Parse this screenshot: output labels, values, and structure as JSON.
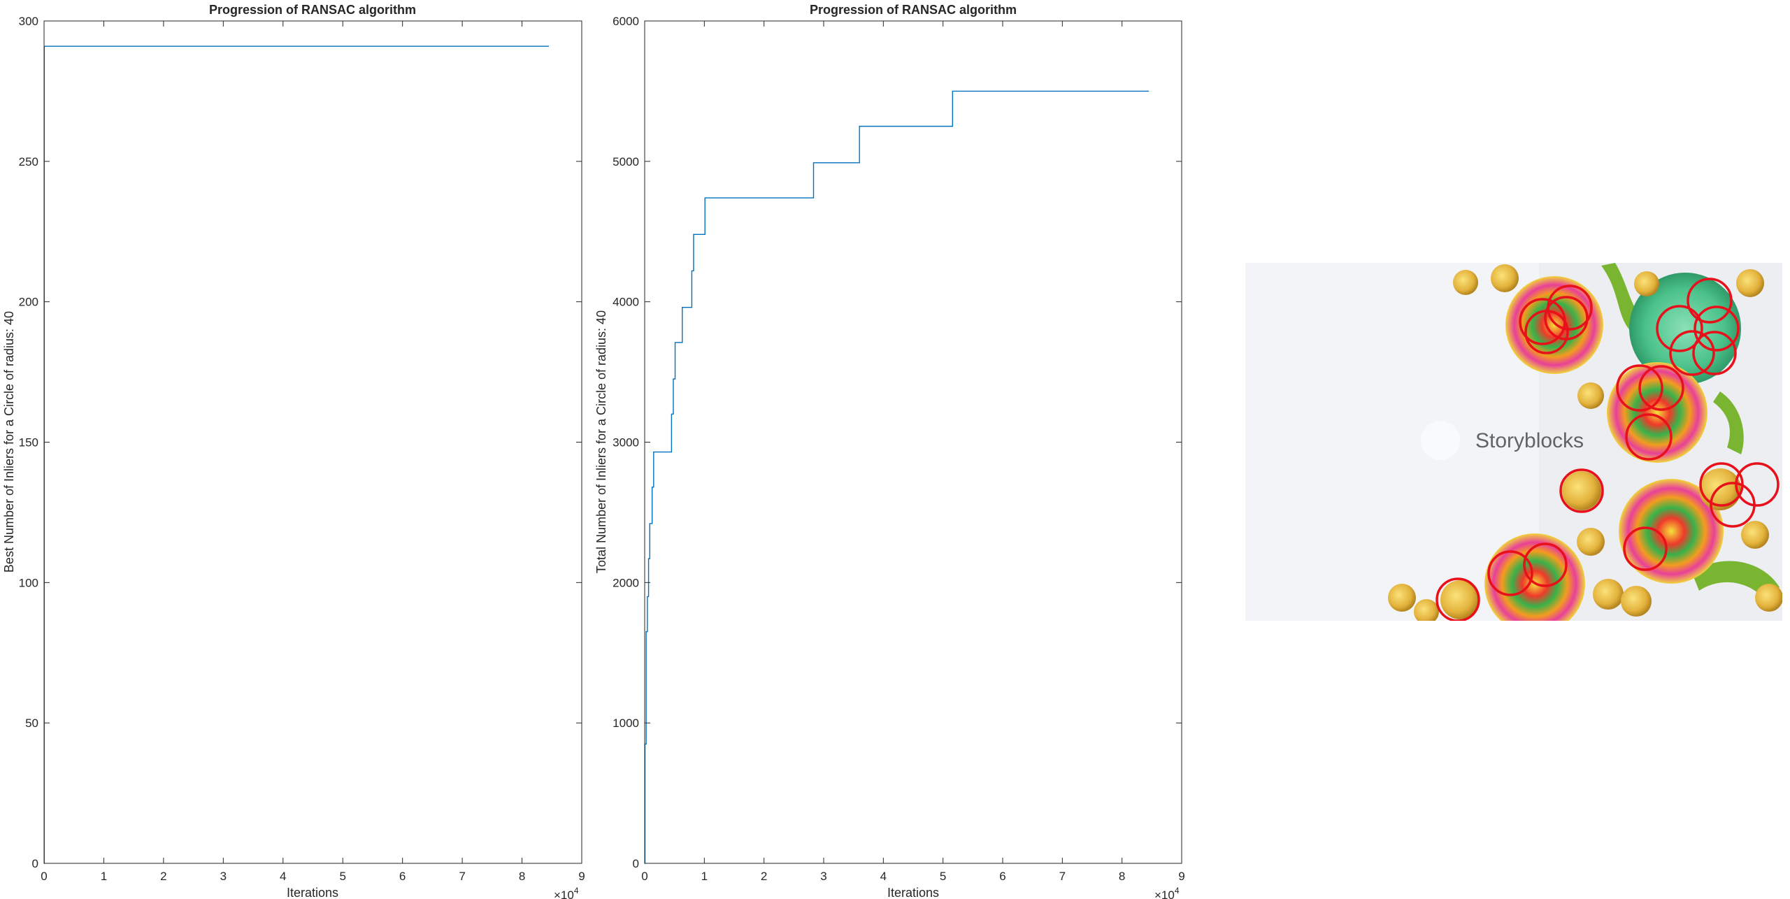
{
  "chart_data": [
    {
      "type": "line",
      "title": "Progression of RANSAC algorithm",
      "xlabel": "Iterations",
      "ylabel": "Best Number of Inliers for a Circle of radius: 40",
      "xlim": [
        0,
        90000
      ],
      "ylim": [
        0,
        300
      ],
      "x_exponent_label": "×10",
      "x_exponent": "4",
      "xticks": [
        0,
        10000,
        20000,
        30000,
        40000,
        50000,
        60000,
        70000,
        80000,
        90000
      ],
      "xtick_labels": [
        "0",
        "1",
        "2",
        "3",
        "4",
        "5",
        "6",
        "7",
        "8",
        "9"
      ],
      "yticks": [
        0,
        50,
        100,
        150,
        200,
        250,
        300
      ],
      "ytick_labels": [
        "0",
        "50",
        "100",
        "150",
        "200",
        "250",
        "300"
      ],
      "grid": false,
      "series_color": "#0072BD",
      "series": [
        {
          "x": [
            0,
            40,
            40,
            84500
          ],
          "y": [
            0,
            0,
            291,
            291
          ]
        }
      ]
    },
    {
      "type": "line",
      "title": "Progression of RANSAC algorithm",
      "xlabel": "Iterations",
      "ylabel": "Total Number of Inliers for a Circle of radius: 40",
      "xlim": [
        0,
        90000
      ],
      "ylim": [
        0,
        6000
      ],
      "x_exponent_label": "×10",
      "x_exponent": "4",
      "xticks": [
        0,
        10000,
        20000,
        30000,
        40000,
        50000,
        60000,
        70000,
        80000,
        90000
      ],
      "xtick_labels": [
        "0",
        "1",
        "2",
        "3",
        "4",
        "5",
        "6",
        "7",
        "8",
        "9"
      ],
      "yticks": [
        0,
        1000,
        2000,
        3000,
        4000,
        5000,
        6000
      ],
      "ytick_labels": [
        "0",
        "1000",
        "2000",
        "3000",
        "4000",
        "5000",
        "6000"
      ],
      "grid": false,
      "series_color": "#0072BD",
      "series": [
        {
          "x": [
            0,
            50,
            50,
            250,
            250,
            450,
            450,
            650,
            650,
            850,
            850,
            1250,
            1250,
            1500,
            1500,
            1700,
            1700,
            1900,
            1900,
            4500,
            4500,
            4800,
            4800,
            5100,
            5100,
            6300,
            6300,
            7900,
            7900,
            8200,
            8200,
            10100,
            10100,
            28300,
            28300,
            36000,
            36000,
            51600,
            51600,
            84500
          ],
          "y": [
            0,
            0,
            850,
            850,
            1650,
            1650,
            1900,
            1900,
            2170,
            2170,
            2420,
            2420,
            2680,
            2680,
            2930,
            2930,
            2930,
            2930,
            2930,
            2930,
            3200,
            3200,
            3450,
            3450,
            3710,
            3710,
            3960,
            3960,
            4220,
            4220,
            4480,
            4480,
            4740,
            4740,
            4990,
            4990,
            5250,
            5250,
            5500,
            5500
          ]
        }
      ]
    }
  ],
  "photo": {
    "watermark": "Storyblocks"
  }
}
